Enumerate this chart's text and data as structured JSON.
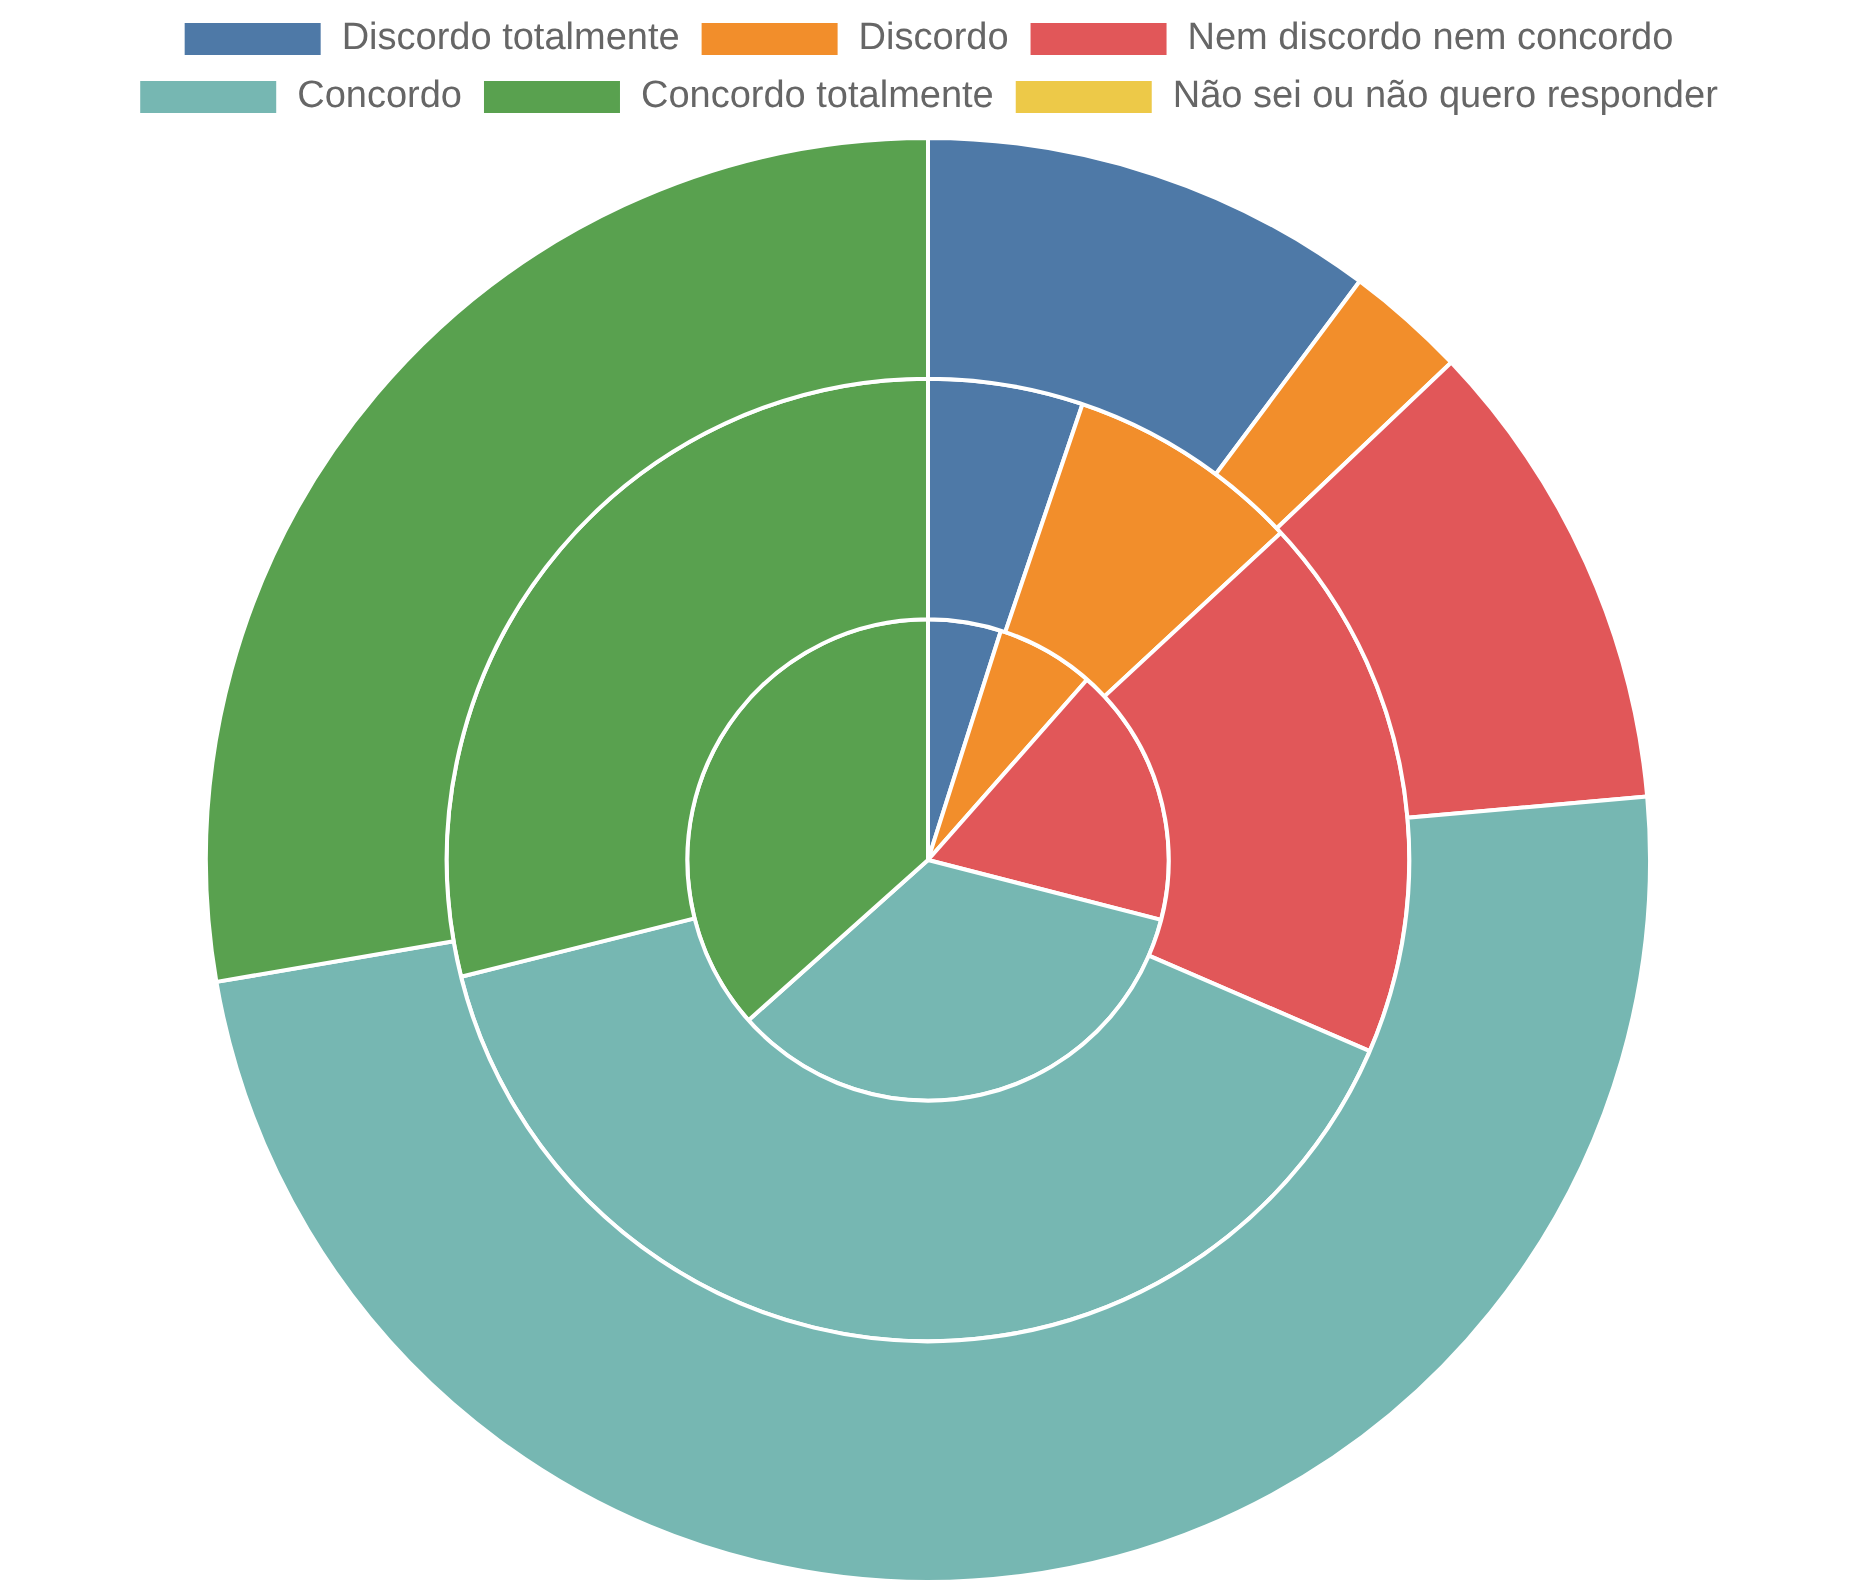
{
  "chart_data": {
    "type": "pie",
    "categories": [
      "Discordo totalmente",
      "Discordo",
      "Nem discordo nem concordo",
      "Concordo",
      "Concordo totalmente",
      "Não sei ou não quero responder"
    ],
    "colors": [
      "#4e79a7",
      "#f28e2b",
      "#e15759",
      "#76b7b2",
      "#59a14f",
      "#edc948"
    ],
    "series": [
      {
        "values": [
          10.2,
          2.7,
          10.7,
          48.7,
          27.7,
          0
        ]
      },
      {
        "values": [
          5.2,
          7.9,
          18.4,
          39.6,
          28.9,
          0
        ]
      },
      {
        "values": [
          4.9,
          6.6,
          17.5,
          34.4,
          36.6,
          0
        ]
      }
    ],
    "legend": "top"
  }
}
